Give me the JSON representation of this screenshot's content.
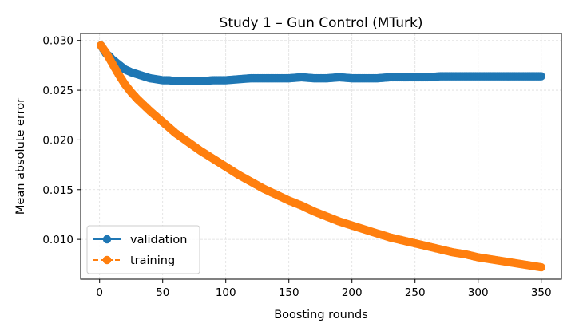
{
  "chart_data": {
    "type": "line",
    "title": "Study 1 – Gun Control (MTurk)",
    "xlabel": "Boosting rounds",
    "ylabel": "Mean absolute error",
    "xlim": [
      -15,
      366
    ],
    "ylim": [
      0.006,
      0.0307
    ],
    "xticks": [
      0,
      50,
      100,
      150,
      200,
      250,
      300,
      350
    ],
    "yticks": [
      0.01,
      0.015,
      0.02,
      0.025,
      0.03
    ],
    "ytick_labels": [
      "0.010",
      "0.015",
      "0.020",
      "0.025",
      "0.030"
    ],
    "grid": true,
    "legend_position": "lower-left",
    "series": [
      {
        "name": "validation",
        "color": "#1f77b4",
        "linestyle": "solid",
        "marker": "circle",
        "x": [
          1,
          3,
          5,
          8,
          10,
          13,
          16,
          20,
          25,
          30,
          35,
          40,
          45,
          50,
          55,
          60,
          65,
          70,
          75,
          80,
          90,
          100,
          110,
          120,
          130,
          140,
          150,
          160,
          170,
          180,
          190,
          200,
          210,
          220,
          230,
          240,
          250,
          260,
          270,
          280,
          290,
          300,
          310,
          320,
          330,
          340,
          350
        ],
        "y": [
          0.0295,
          0.0291,
          0.0287,
          0.0284,
          0.0281,
          0.0278,
          0.0275,
          0.0271,
          0.0268,
          0.0266,
          0.0264,
          0.0262,
          0.0261,
          0.026,
          0.026,
          0.0259,
          0.0259,
          0.0259,
          0.0259,
          0.0259,
          0.026,
          0.026,
          0.0261,
          0.0262,
          0.0262,
          0.0262,
          0.0262,
          0.0263,
          0.0262,
          0.0262,
          0.0263,
          0.0262,
          0.0262,
          0.0262,
          0.0263,
          0.0263,
          0.0263,
          0.0263,
          0.0264,
          0.0264,
          0.0264,
          0.0264,
          0.0264,
          0.0264,
          0.0264,
          0.0264,
          0.0264
        ]
      },
      {
        "name": "training",
        "color": "#ff7f0e",
        "linestyle": "dashed",
        "marker": "circle",
        "x": [
          1,
          5,
          10,
          15,
          20,
          25,
          30,
          40,
          50,
          60,
          70,
          80,
          90,
          100,
          110,
          120,
          130,
          140,
          150,
          160,
          170,
          180,
          190,
          200,
          210,
          220,
          230,
          240,
          250,
          260,
          270,
          280,
          290,
          300,
          310,
          320,
          330,
          340,
          350
        ],
        "y": [
          0.0295,
          0.0288,
          0.0277,
          0.0266,
          0.0256,
          0.0248,
          0.0241,
          0.0229,
          0.0218,
          0.0207,
          0.0198,
          0.0189,
          0.0181,
          0.0173,
          0.0165,
          0.0158,
          0.0151,
          0.0145,
          0.0139,
          0.0134,
          0.0128,
          0.0123,
          0.0118,
          0.0114,
          0.011,
          0.0106,
          0.0102,
          0.0099,
          0.0096,
          0.0093,
          0.009,
          0.0087,
          0.0085,
          0.0082,
          0.008,
          0.0078,
          0.0076,
          0.0074,
          0.0072
        ]
      }
    ]
  }
}
